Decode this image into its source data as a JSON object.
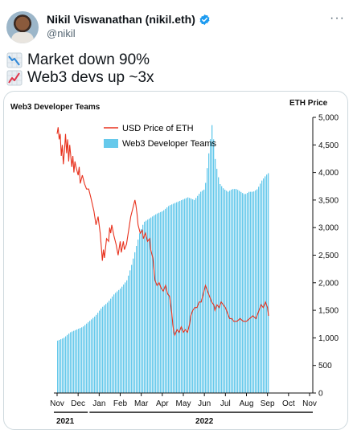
{
  "tweet": {
    "author_name": "Nikil Viswanathan (nikil.eth)",
    "handle": "@nikil",
    "more_label": "···",
    "lines": [
      {
        "icon": "chart-decreasing-emoji",
        "text": "Market down 90%"
      },
      {
        "icon": "chart-increasing-emoji",
        "text": "Web3 devs up ~3x"
      }
    ]
  },
  "colors": {
    "verified": "#1d9bf0",
    "eth_line": "#e8321e",
    "dev_bars": "#66c9eb",
    "text": "#0f1419",
    "muted": "#536471",
    "border": "#cfd9de"
  },
  "chart_data": {
    "type": "bar",
    "title_left": "Web3 Developer Teams",
    "title_right": "ETH Price",
    "legend": [
      {
        "name": "USD Price of ETH",
        "type": "line"
      },
      {
        "name": "Web3 Developer Teams",
        "type": "bar"
      }
    ],
    "x_ticks": [
      "Nov",
      "Dec",
      "Jan",
      "Feb",
      "Mar",
      "Apr",
      "May",
      "Jun",
      "Jul",
      "Aug",
      "Sep",
      "Oct",
      "Nov"
    ],
    "year_labels": [
      "2021",
      "2022"
    ],
    "y_right_ticks": [
      "0",
      "500",
      "1,000",
      "1,500",
      "2,000",
      "2,500",
      "3,000",
      "3,500",
      "4,000",
      "4,500",
      "5,000"
    ],
    "y_right_range": [
      0,
      5000
    ],
    "series": [
      {
        "name": "USD Price of ETH",
        "axis": "right",
        "points": [
          [
            0,
            4700
          ],
          [
            0.05,
            4820
          ],
          [
            0.1,
            4600
          ],
          [
            0.15,
            4700
          ],
          [
            0.2,
            4300
          ],
          [
            0.25,
            4500
          ],
          [
            0.3,
            4150
          ],
          [
            0.35,
            4400
          ],
          [
            0.4,
            4700
          ],
          [
            0.45,
            4350
          ],
          [
            0.5,
            4600
          ],
          [
            0.55,
            4200
          ],
          [
            0.6,
            4500
          ],
          [
            0.7,
            4100
          ],
          [
            0.75,
            4300
          ],
          [
            0.8,
            4000
          ],
          [
            0.85,
            4200
          ],
          [
            0.9,
            4100
          ],
          [
            1.0,
            3950
          ],
          [
            1.05,
            4100
          ],
          [
            1.1,
            3800
          ],
          [
            1.2,
            3950
          ],
          [
            1.3,
            3800
          ],
          [
            1.4,
            3700
          ],
          [
            1.5,
            3700
          ],
          [
            1.6,
            3550
          ],
          [
            1.75,
            3300
          ],
          [
            1.85,
            3050
          ],
          [
            1.95,
            3200
          ],
          [
            2.05,
            2900
          ],
          [
            2.1,
            2650
          ],
          [
            2.15,
            2400
          ],
          [
            2.2,
            2600
          ],
          [
            2.25,
            2450
          ],
          [
            2.35,
            2800
          ],
          [
            2.45,
            2750
          ],
          [
            2.5,
            3000
          ],
          [
            2.55,
            2900
          ],
          [
            2.6,
            3050
          ],
          [
            2.7,
            2850
          ],
          [
            2.8,
            2700
          ],
          [
            2.9,
            2500
          ],
          [
            3.0,
            2750
          ],
          [
            3.05,
            2550
          ],
          [
            3.15,
            2750
          ],
          [
            3.2,
            2600
          ],
          [
            3.3,
            2700
          ],
          [
            3.4,
            2950
          ],
          [
            3.5,
            3200
          ],
          [
            3.6,
            3350
          ],
          [
            3.7,
            3500
          ],
          [
            3.75,
            3400
          ],
          [
            3.8,
            3250
          ],
          [
            3.85,
            3050
          ],
          [
            3.95,
            2900
          ],
          [
            4.05,
            2950
          ],
          [
            4.1,
            2800
          ],
          [
            4.2,
            2900
          ],
          [
            4.3,
            2750
          ],
          [
            4.4,
            2800
          ],
          [
            4.45,
            2600
          ],
          [
            4.55,
            2450
          ],
          [
            4.6,
            2250
          ],
          [
            4.65,
            2050
          ],
          [
            4.75,
            1950
          ],
          [
            4.85,
            2000
          ],
          [
            4.95,
            1900
          ],
          [
            5.05,
            1850
          ],
          [
            5.15,
            1950
          ],
          [
            5.25,
            1800
          ],
          [
            5.35,
            1750
          ],
          [
            5.45,
            1450
          ],
          [
            5.5,
            1250
          ],
          [
            5.55,
            1100
          ],
          [
            5.6,
            1050
          ],
          [
            5.7,
            1150
          ],
          [
            5.8,
            1100
          ],
          [
            5.9,
            1200
          ],
          [
            6.0,
            1100
          ],
          [
            6.1,
            1150
          ],
          [
            6.2,
            1100
          ],
          [
            6.3,
            1250
          ],
          [
            6.35,
            1400
          ],
          [
            6.45,
            1500
          ],
          [
            6.55,
            1550
          ],
          [
            6.65,
            1550
          ],
          [
            6.75,
            1650
          ],
          [
            6.85,
            1650
          ],
          [
            6.95,
            1800
          ],
          [
            7.05,
            1950
          ],
          [
            7.15,
            1850
          ],
          [
            7.25,
            1750
          ],
          [
            7.35,
            1650
          ],
          [
            7.45,
            1600
          ],
          [
            7.5,
            1500
          ],
          [
            7.6,
            1600
          ],
          [
            7.7,
            1550
          ],
          [
            7.8,
            1650
          ],
          [
            7.9,
            1600
          ],
          [
            8.0,
            1550
          ],
          [
            8.1,
            1450
          ],
          [
            8.2,
            1350
          ],
          [
            8.3,
            1350
          ],
          [
            8.4,
            1300
          ],
          [
            8.55,
            1300
          ],
          [
            8.7,
            1350
          ],
          [
            8.85,
            1300
          ],
          [
            9.0,
            1300
          ],
          [
            9.15,
            1350
          ],
          [
            9.3,
            1400
          ],
          [
            9.45,
            1350
          ],
          [
            9.6,
            1500
          ],
          [
            9.7,
            1600
          ],
          [
            9.8,
            1550
          ],
          [
            9.9,
            1650
          ],
          [
            10.0,
            1550
          ],
          [
            10.05,
            1400
          ]
        ]
      },
      {
        "name": "Web3 Developer Teams",
        "axis": "right",
        "points": [
          [
            0,
            950
          ],
          [
            0.3,
            1000
          ],
          [
            0.6,
            1100
          ],
          [
            0.9,
            1150
          ],
          [
            1.2,
            1200
          ],
          [
            1.5,
            1300
          ],
          [
            1.8,
            1400
          ],
          [
            2.1,
            1550
          ],
          [
            2.4,
            1650
          ],
          [
            2.7,
            1800
          ],
          [
            3.0,
            1900
          ],
          [
            3.3,
            2050
          ],
          [
            3.5,
            2300
          ],
          [
            3.7,
            2600
          ],
          [
            3.9,
            2900
          ],
          [
            4.1,
            3100
          ],
          [
            4.3,
            3150
          ],
          [
            4.5,
            3200
          ],
          [
            4.7,
            3250
          ],
          [
            5.0,
            3300
          ],
          [
            5.3,
            3400
          ],
          [
            5.6,
            3450
          ],
          [
            5.9,
            3500
          ],
          [
            6.2,
            3550
          ],
          [
            6.5,
            3500
          ],
          [
            6.8,
            3650
          ],
          [
            7.0,
            3700
          ],
          [
            7.2,
            4400
          ],
          [
            7.35,
            4900
          ],
          [
            7.5,
            4200
          ],
          [
            7.7,
            3800
          ],
          [
            7.9,
            3700
          ],
          [
            8.1,
            3650
          ],
          [
            8.3,
            3700
          ],
          [
            8.5,
            3700
          ],
          [
            8.7,
            3650
          ],
          [
            8.9,
            3600
          ],
          [
            9.1,
            3650
          ],
          [
            9.3,
            3650
          ],
          [
            9.5,
            3700
          ],
          [
            9.7,
            3850
          ],
          [
            9.9,
            3950
          ],
          [
            10.05,
            4000
          ]
        ]
      }
    ]
  }
}
